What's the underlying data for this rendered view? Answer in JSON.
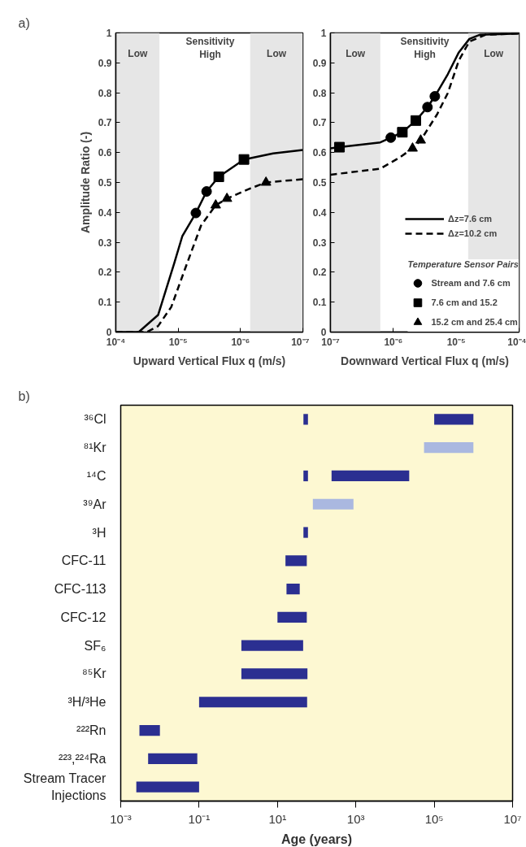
{
  "chart_data": [
    {
      "type": "line",
      "title": "a)",
      "xlabel": "Upward Vertical Flux q (m/s)",
      "ylabel": "Amplitude Ratio (-)",
      "log": "x",
      "xlim": [
        0.0001,
        1e-07
      ],
      "xticks": [
        {
          "value": 0.0001,
          "label": "10⁻⁴"
        },
        {
          "value": 1e-05,
          "label": "10⁻⁵"
        },
        {
          "value": 1e-06,
          "label": "10⁻⁶"
        },
        {
          "value": 1e-07,
          "label": "10⁻⁷"
        }
      ],
      "ylim": [
        0,
        1
      ],
      "yticks": [
        0,
        0.1,
        0.2,
        0.3,
        0.4,
        0.5,
        0.6,
        0.7,
        0.8,
        0.9,
        1
      ],
      "grid": false,
      "legend": false,
      "bands": [
        {
          "axis": "x",
          "from": 0.0001,
          "to": 2e-05,
          "label": "Low",
          "color": "#e6e6e6"
        },
        {
          "axis": "x",
          "from": 7e-07,
          "to": 1e-07,
          "label": "Low",
          "color": "#e6e6e6"
        }
      ],
      "annotations": [
        "Sensitivity\nHigh"
      ],
      "series": [
        {
          "type": "line",
          "line_style": "solid",
          "color": "#000000",
          "x": [
            0.0001,
            4.3e-05,
            2.1e-05,
            1.16e-05,
            8.6e-06,
            5.2e-06,
            3.5e-06,
            2.23e-06,
            8.8e-07,
            3e-07,
            1e-07
          ],
          "values": [
            0,
            0,
            0.057,
            0.229,
            0.32,
            0.398,
            0.47,
            0.519,
            0.577,
            0.597,
            0.609
          ]
        },
        {
          "type": "line",
          "line_style": "dashed",
          "color": "#000000",
          "x": [
            0.0001,
            3.2e-05,
            2.1e-05,
            1.29e-05,
            7.8e-06,
            4.3e-06,
            2.5e-06,
            1.65e-06,
            7e-07,
            3.9e-07,
            1e-07
          ],
          "values": [
            0,
            0,
            0.02,
            0.084,
            0.21,
            0.356,
            0.424,
            0.446,
            0.48,
            0.5,
            0.511
          ]
        },
        {
          "type": "scatter",
          "marker": "circle",
          "color": "#000000",
          "x": [
            5.2e-06,
            3.5e-06
          ],
          "values": [
            0.398,
            0.47
          ]
        },
        {
          "type": "scatter",
          "marker": "square",
          "color": "#000000",
          "x": [
            2.23e-06,
            8.8e-07
          ],
          "values": [
            0.519,
            0.577
          ]
        },
        {
          "type": "scatter",
          "marker": "triangle",
          "color": "#000000",
          "x": [
            2.5e-06,
            1.65e-06,
            3.9e-07
          ],
          "values": [
            0.424,
            0.446,
            0.5
          ]
        }
      ]
    },
    {
      "type": "line",
      "xlabel": "Downward Vertical Flux q (m/s)",
      "log": "x",
      "xlim": [
        1e-07,
        0.0001
      ],
      "xticks": [
        {
          "value": 1e-07,
          "label": "10⁻⁷"
        },
        {
          "value": 1e-06,
          "label": "10⁻⁶"
        },
        {
          "value": 1e-05,
          "label": "10⁻⁵"
        },
        {
          "value": 0.0001,
          "label": "10⁻⁴"
        }
      ],
      "ylim": [
        0,
        1
      ],
      "yticks": [
        0,
        0.1,
        0.2,
        0.3,
        0.4,
        0.5,
        0.6,
        0.7,
        0.8,
        0.9,
        1
      ],
      "grid": false,
      "legend": "bottom right",
      "legend_title": "Temperature Sensor Pairs",
      "bands": [
        {
          "axis": "x",
          "from": 1e-07,
          "to": 6.2e-07,
          "label": "Low",
          "color": "#e6e6e6"
        },
        {
          "axis": "x",
          "from": 1.55e-05,
          "to": 0.0001,
          "label": "Low",
          "color": "#e6e6e6"
        }
      ],
      "annotations": [
        "Sensitivity\nHigh"
      ],
      "series": [
        {
          "name": "Δz=7.6 cm",
          "type": "line",
          "line_style": "solid",
          "color": "#000000",
          "x": [
            1e-07,
            1.39e-07,
            6.2e-07,
            9.1e-07,
            1.39e-06,
            2.28e-06,
            3.49e-06,
            4.57e-06,
            7.35e-06,
            1.1e-05,
            1.62e-05,
            2.4e-05,
            0.0001
          ],
          "values": [
            0.614,
            0.618,
            0.634,
            0.65,
            0.668,
            0.707,
            0.752,
            0.788,
            0.862,
            0.935,
            0.98,
            0.994,
            0.998
          ]
        },
        {
          "name": "Δz=10.2 cm",
          "type": "line",
          "line_style": "dashed",
          "color": "#000000",
          "x": [
            1e-07,
            6.2e-07,
            1.23e-06,
            2.02e-06,
            2.72e-06,
            4.94e-06,
            7.35e-06,
            1.1e-05,
            1.62e-05,
            2.95e-05,
            0.0001
          ],
          "values": [
            0.526,
            0.546,
            0.582,
            0.614,
            0.641,
            0.727,
            0.799,
            0.908,
            0.971,
            0.994,
            0.998
          ]
        },
        {
          "name": "Stream and 7.6 cm",
          "type": "scatter",
          "marker": "circle",
          "color": "#000000",
          "x": [
            9.1e-07,
            3.49e-06,
            4.57e-06
          ],
          "values": [
            0.65,
            0.752,
            0.788
          ]
        },
        {
          "name": "7.6 cm and 15.2",
          "type": "scatter",
          "marker": "square",
          "color": "#000000",
          "x": [
            1.39e-07,
            1.39e-06,
            2.28e-06
          ],
          "values": [
            0.618,
            0.668,
            0.707
          ]
        },
        {
          "name": "15.2 cm and 25.4 cm",
          "type": "scatter",
          "marker": "triangle",
          "color": "#000000",
          "x": [
            2.02e-06,
            2.72e-06
          ],
          "values": [
            0.614,
            0.641
          ]
        }
      ]
    },
    {
      "type": "bar",
      "orientation": "horizontal",
      "title": "b)",
      "xlabel": "Age (years)",
      "log": "x",
      "xlim": [
        0.001,
        10000000
      ],
      "xticks": [
        {
          "value": 0.001,
          "label": "10⁻³"
        },
        {
          "value": 0.1,
          "label": "10⁻¹"
        },
        {
          "value": 10,
          "label": "10¹"
        },
        {
          "value": 1000,
          "label": "10³"
        },
        {
          "value": 100000,
          "label": "10⁵"
        },
        {
          "value": 10000000,
          "label": "10⁷"
        }
      ],
      "grid": false,
      "legend": false,
      "categories": [
        "³⁶Cl",
        "⁸¹Kr",
        "¹⁴C",
        "³⁹Ar",
        "³H",
        "CFC-11",
        "CFC-113",
        "CFC-12",
        "SF₆",
        "⁸⁵Kr",
        "³H/³He",
        "²²²Rn",
        "²²³,²²⁴Ra",
        "Stream Tracer\nInjections"
      ],
      "series": [
        {
          "colors": [
            "#2b2f91",
            "#aab8e0",
            "#2b2f91",
            "#aab8e0",
            "#2b2f91",
            "#2b2f91",
            "#2b2f91",
            "#2b2f91",
            "#2b2f91",
            "#2b2f91",
            "#2b2f91",
            "#2b2f91",
            "#2b2f91",
            "#2b2f91"
          ],
          "base": [
            46,
            55000,
            46,
            80,
            46,
            16,
            17,
            10,
            1.2,
            1.2,
            0.1,
            0.003,
            0.005,
            0.0025
          ],
          "values": [
            14,
            945000,
            14,
            790,
            14,
            40,
            20,
            46,
            44,
            57,
            57,
            0.007,
            0.085,
            0.0975
          ]
        },
        {
          "color": "#2b2f91",
          "base": [
            100000,
            null,
            240,
            null,
            null,
            null,
            null,
            null,
            null,
            null,
            null,
            null,
            null,
            null
          ],
          "values": [
            900000,
            null,
            22760,
            null,
            null,
            null,
            null,
            null,
            null,
            null,
            null,
            null,
            null,
            null
          ]
        }
      ]
    }
  ]
}
